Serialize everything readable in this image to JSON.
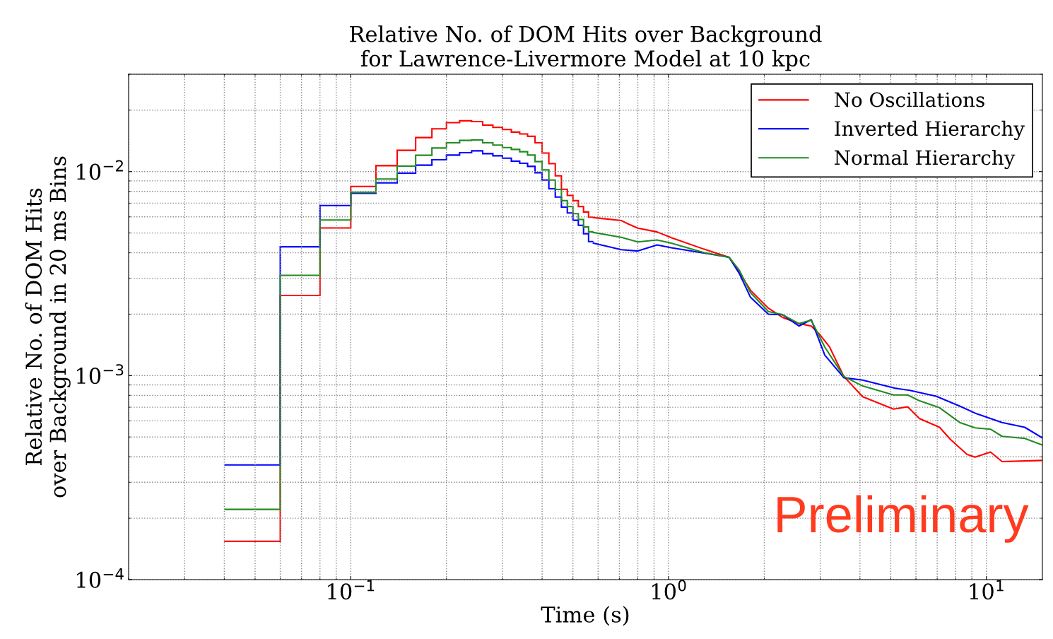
{
  "chart_data": {
    "type": "histogram",
    "title": "Relative No. of DOM Hits over Background\nfor Lawrence-Livermore Model at 10 kpc",
    "xlabel": "Time (s)",
    "ylabel": "Relative No. of DOM Hits\nover Background in 20 ms Bins",
    "log": "xy",
    "grid": true,
    "legend": "top right",
    "xlim": [
      0.02,
      15
    ],
    "ylim": [
      0.0001,
      0.03
    ],
    "xticks": [
      {
        "value": 0.1,
        "label": "10$^{−1}$"
      },
      {
        "value": 1,
        "label": "10$^{0}$"
      },
      {
        "value": 10,
        "label": "10$^{1}$"
      }
    ],
    "yticks": [
      {
        "value": 0.0001,
        "label": "10$^{−4}$"
      },
      {
        "value": 0.001,
        "label": "10$^{−3}$"
      },
      {
        "value": 0.01,
        "label": "10$^{−2}$"
      }
    ],
    "bins": [
      0.04,
      0.06,
      0.08,
      0.1,
      0.12,
      0.14,
      0.16,
      0.18,
      0.2,
      0.22,
      0.24,
      0.26,
      0.28,
      0.3,
      0.32,
      0.34,
      0.36,
      0.38,
      0.4,
      0.42,
      0.44,
      0.46,
      0.48,
      0.5,
      0.52,
      0.54,
      0.56,
      0.58
    ],
    "series": [
      {
        "name": "No Oscillations",
        "color": "#ff0000",
        "values": [
          0.000154,
          0.00247,
          0.00529,
          0.00845,
          0.01069,
          0.01271,
          0.01468,
          0.0162,
          0.01737,
          0.01774,
          0.01759,
          0.0169,
          0.01646,
          0.01607,
          0.01561,
          0.01528,
          0.01488,
          0.01384,
          0.01233,
          0.01094,
          0.00953,
          0.00819,
          0.00764,
          0.0072,
          0.00674,
          0.00634,
          0.00598
        ]
      },
      {
        "name": "Inverted Hierarchy",
        "color": "#0000ff",
        "values": [
          0.000365,
          0.00428,
          0.00682,
          0.00783,
          0.0088,
          0.00982,
          0.01075,
          0.01143,
          0.01205,
          0.01238,
          0.01264,
          0.01224,
          0.01195,
          0.01164,
          0.01125,
          0.01098,
          0.0106,
          0.00987,
          0.00908,
          0.00824,
          0.0075,
          0.0067,
          0.00627,
          0.00577,
          0.00545,
          0.00496,
          0.00454
        ]
      },
      {
        "name": "Normal Hierarchy",
        "color": "#228b22",
        "values": [
          0.000221,
          0.0031,
          0.00579,
          0.00791,
          0.0092,
          0.01063,
          0.01202,
          0.01305,
          0.01384,
          0.01422,
          0.01429,
          0.01384,
          0.01348,
          0.01312,
          0.01284,
          0.01251,
          0.01205,
          0.01119,
          0.01019,
          0.00908,
          0.00817,
          0.0072,
          0.00674,
          0.00622,
          0.00582,
          0.00535,
          0.00507
        ]
      },
      {
        "type": "line",
        "color": "#ff0000",
        "x": [
          0.58,
          0.61,
          0.71,
          0.75,
          0.8,
          0.92,
          1.02,
          1.29,
          1.55,
          1.67,
          1.81,
          2.06,
          2.28,
          2.57,
          2.81,
          3.0,
          3.21,
          3.56,
          4.08,
          5.1,
          5.65,
          6.16,
          7.12,
          7.69,
          8.68,
          9.21,
          10.3,
          11.2,
          15
        ],
        "values": [
          0.00595,
          0.0059,
          0.00575,
          0.00552,
          0.00528,
          0.00506,
          0.00474,
          0.00417,
          0.0038,
          0.0032,
          0.00262,
          0.00214,
          0.00193,
          0.0018,
          0.00175,
          0.00158,
          0.00138,
          0.00099,
          0.000788,
          0.000685,
          0.000703,
          0.000615,
          0.000558,
          0.000488,
          0.000411,
          0.000398,
          0.000422,
          0.000379,
          0.000384
        ]
      },
      {
        "type": "line",
        "color": "#0000ff",
        "x": [
          0.58,
          0.61,
          0.71,
          0.8,
          0.92,
          1.02,
          1.41,
          1.55,
          1.67,
          1.81,
          2.06,
          2.28,
          2.57,
          2.81,
          3.1,
          3.56,
          4.08,
          5.19,
          5.74,
          6.94,
          8.24,
          9.21,
          11.2,
          13.2,
          15
        ],
        "values": [
          0.00446,
          0.00438,
          0.00414,
          0.00408,
          0.00437,
          0.00423,
          0.0039,
          0.0038,
          0.00316,
          0.00242,
          0.002,
          0.00199,
          0.00175,
          0.00188,
          0.00126,
          0.000976,
          0.00095,
          0.000866,
          0.000847,
          0.000793,
          0.000709,
          0.000655,
          0.000589,
          0.000558,
          0.000495
        ]
      },
      {
        "type": "line",
        "color": "#228b22",
        "x": [
          0.58,
          0.71,
          0.8,
          0.92,
          1.02,
          1.29,
          1.55,
          1.67,
          1.81,
          2.06,
          2.28,
          2.57,
          2.81,
          3.1,
          3.56,
          4.08,
          5.1,
          5.65,
          6.16,
          7.12,
          8.24,
          9.21,
          10.3,
          11.2,
          13.2,
          15
        ],
        "values": [
          0.00503,
          0.00476,
          0.00452,
          0.00462,
          0.00446,
          0.00401,
          0.0038,
          0.00328,
          0.00255,
          0.00206,
          0.00199,
          0.0018,
          0.00187,
          0.00138,
          0.00099,
          0.000889,
          0.000804,
          0.000804,
          0.000752,
          0.000696,
          0.000589,
          0.000555,
          0.000546,
          0.000504,
          0.000492,
          0.000457
        ]
      }
    ],
    "annotations": [
      "Preliminary"
    ]
  }
}
